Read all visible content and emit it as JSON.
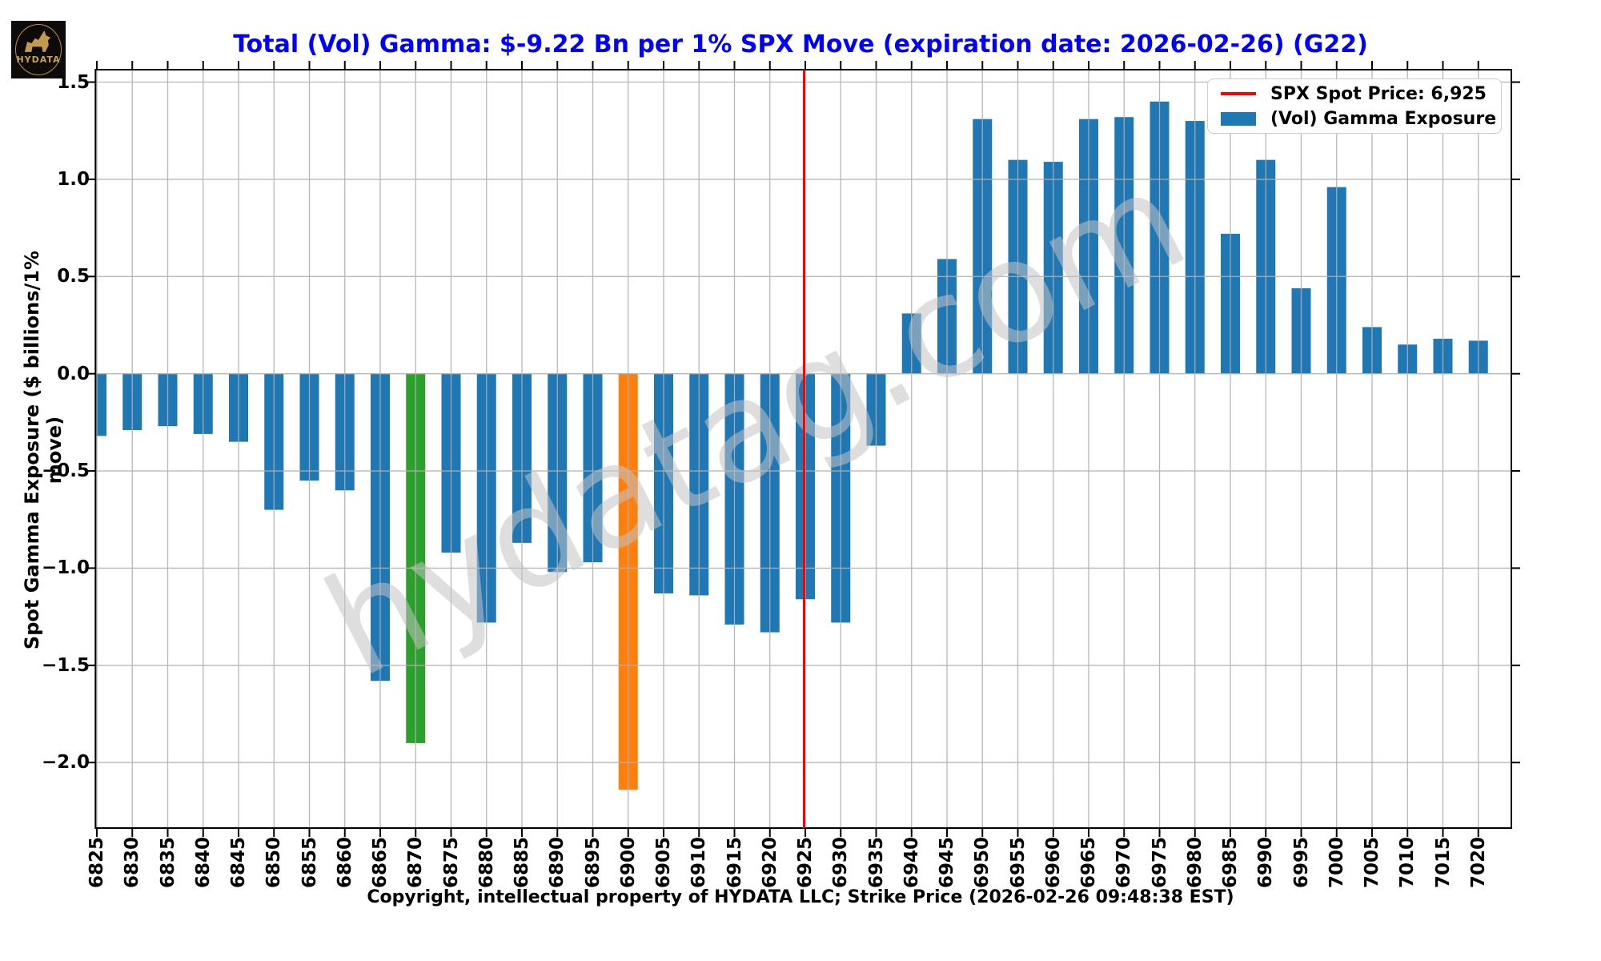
{
  "header": {
    "title": "Total (Vol) Gamma: $-9.22 Bn per 1% SPX Move (expiration date: 2026-02-26) (G22)",
    "title_color": "#0000ff"
  },
  "logo": {
    "text": "HYDATA",
    "tagline_dots": "· · · · · ·",
    "bg_color": "#0c0b09",
    "gold_color": "#c9a24b"
  },
  "watermark": "hydatag.com",
  "legend": {
    "spot_label": "SPX Spot Price: 6,925",
    "gamma_label": "(Vol) Gamma Exposure"
  },
  "caption": "Copyright, intellectual property of HYDATA LLC; Strike Price (2026-02-26 09:48:38 EST)",
  "chart_data": {
    "type": "bar",
    "title": "Total (Vol) Gamma: $-9.22 Bn per 1% SPX Move (expiration date: 2026-02-26) (G22)",
    "xlabel": "",
    "ylabel": "Spot Gamma Exposure ($ billions/1% move)",
    "categories": [
      6825,
      6830,
      6835,
      6840,
      6845,
      6850,
      6855,
      6860,
      6865,
      6870,
      6875,
      6880,
      6885,
      6890,
      6895,
      6900,
      6905,
      6910,
      6915,
      6920,
      6925,
      6930,
      6935,
      6940,
      6945,
      6950,
      6955,
      6960,
      6965,
      6970,
      6975,
      6980,
      6985,
      6990,
      6995,
      7000,
      7005,
      7010,
      7015,
      7020
    ],
    "values": [
      -0.32,
      -0.29,
      -0.27,
      -0.31,
      -0.35,
      -0.7,
      -0.55,
      -0.6,
      -1.58,
      -1.9,
      -0.92,
      -1.28,
      -0.87,
      -1.02,
      -0.97,
      -2.14,
      -1.13,
      -1.14,
      -1.29,
      -1.33,
      -1.16,
      -1.28,
      -0.37,
      0.31,
      0.59,
      1.31,
      1.1,
      1.09,
      1.31,
      1.32,
      1.4,
      1.3,
      0.72,
      1.1,
      0.44,
      0.96,
      0.24,
      0.15,
      0.18,
      0.17
    ],
    "series_name": "(Vol) Gamma Exposure",
    "bar_colors": {
      "default": "#1f77b4",
      "6870": "#2ca02c",
      "6900": "#ff7f0e"
    },
    "yticks": [
      1.5,
      1.0,
      0.5,
      0.0,
      -0.5,
      -1.0,
      -1.5,
      -2.0
    ],
    "ytick_labels": [
      "1.5",
      "1.0",
      "0.5",
      "0.0",
      "−0.5",
      "−1.0",
      "−1.5",
      "−2.0"
    ],
    "ylim": [
      -2.337,
      1.564
    ],
    "grid": true,
    "grid_color": "#b0b0b0",
    "legend_position": "upper right",
    "spot_line": {
      "x": 6925,
      "color": "#ff0000",
      "label": "SPX Spot Price: 6,925"
    }
  }
}
